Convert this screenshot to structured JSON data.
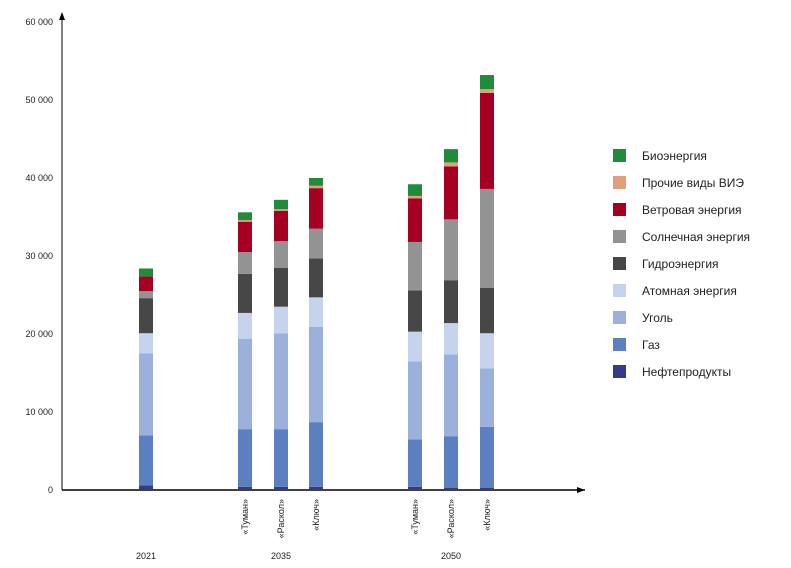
{
  "chart_data": {
    "type": "bar",
    "stacked": true,
    "title": "",
    "xlabel": "",
    "ylabel": "",
    "ylim": [
      0,
      60000
    ],
    "yticks": [
      0,
      10000,
      20000,
      30000,
      40000,
      50000,
      60000
    ],
    "ytick_labels": [
      "0",
      "10 000",
      "20 000",
      "30 000",
      "40 000",
      "50 000",
      "60 000"
    ],
    "grid": false,
    "legend_position": "right",
    "groups": [
      {
        "year": "2021",
        "bars": [
          {
            "label": ""
          }
        ]
      },
      {
        "year": "2035",
        "bars": [
          {
            "label": "«Туман»"
          },
          {
            "label": "«Раскол»"
          },
          {
            "label": "«Ключ»"
          }
        ]
      },
      {
        "year": "2050",
        "bars": [
          {
            "label": "«Туман»"
          },
          {
            "label": "«Раскол»"
          },
          {
            "label": "«Ключ»"
          }
        ]
      }
    ],
    "series": [
      {
        "name": "Нефтепродукты",
        "color": "#353a8a",
        "values": [
          600,
          400,
          400,
          400,
          400,
          300,
          300
        ]
      },
      {
        "name": "Газ",
        "color": "#5b7fbf",
        "values": [
          6400,
          7400,
          7400,
          8300,
          6100,
          6600,
          7800
        ]
      },
      {
        "name": "Уголь",
        "color": "#9bb0db",
        "values": [
          10500,
          11600,
          12300,
          12200,
          10000,
          10500,
          7500
        ]
      },
      {
        "name": "Атомная энергия",
        "color": "#c5d3ec",
        "values": [
          2600,
          3300,
          3400,
          3800,
          3800,
          4000,
          4500
        ]
      },
      {
        "name": "Гидроэнергия",
        "color": "#474747",
        "values": [
          4500,
          5000,
          5000,
          5000,
          5300,
          5500,
          5800
        ]
      },
      {
        "name": "Солнечная энергия",
        "color": "#939393",
        "values": [
          900,
          2800,
          3400,
          3800,
          6200,
          7800,
          12700
        ]
      },
      {
        "name": "Ветровая энергия",
        "color": "#a50021",
        "values": [
          1900,
          3900,
          3900,
          5200,
          5600,
          6800,
          12300
        ]
      },
      {
        "name": "Прочие виды ВИЭ",
        "color": "#e0a07a",
        "values": [
          0,
          200,
          200,
          300,
          300,
          500,
          500
        ]
      },
      {
        "name": "Биоэнергия",
        "color": "#1e8c3a",
        "values": [
          1000,
          1000,
          1200,
          1000,
          1500,
          1700,
          1800
        ]
      }
    ],
    "legend_order": [
      "Биоэнергия",
      "Прочие виды ВИЭ",
      "Ветровая энергия",
      "Солнечная энергия",
      "Гидроэнергия",
      "Атомная энергия",
      "Уголь",
      "Газ",
      "Нефтепродукты"
    ]
  }
}
